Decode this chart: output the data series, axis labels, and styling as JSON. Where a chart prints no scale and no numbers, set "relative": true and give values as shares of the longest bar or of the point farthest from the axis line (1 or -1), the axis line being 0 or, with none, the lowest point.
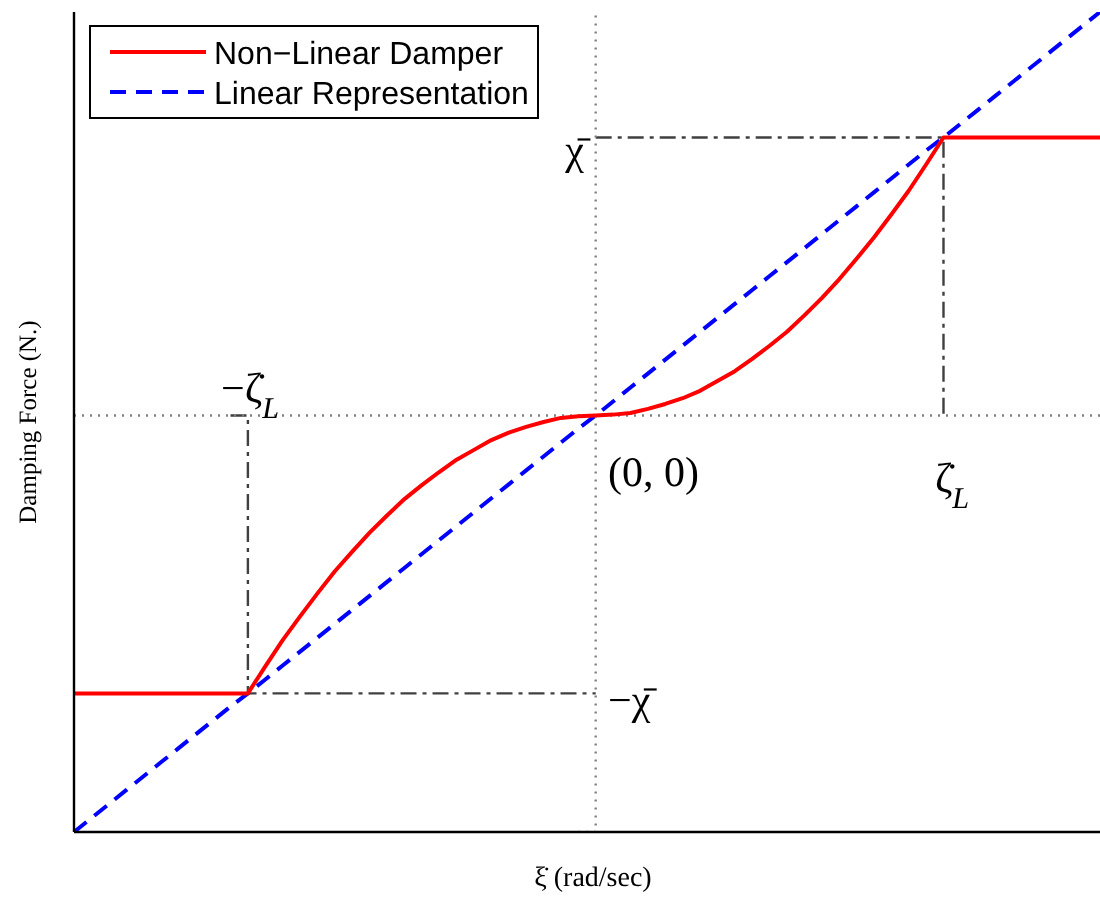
{
  "chart_data": {
    "type": "line",
    "relative": true,
    "xlabel": "ξ̇ (rad/sec)",
    "ylabel": "Damping Force (N.)",
    "categories": [
      null,
      null,
      null,
      null,
      null,
      null,
      null,
      null,
      null,
      null,
      null,
      null,
      null,
      null,
      null,
      null,
      null,
      null,
      null,
      null,
      null,
      null,
      null,
      null,
      null,
      null,
      null,
      null,
      null,
      null,
      null,
      null,
      null,
      null,
      null,
      null,
      null,
      null,
      null,
      null,
      null,
      null,
      null,
      null,
      null,
      null,
      null,
      null,
      null,
      null,
      null,
      null,
      null,
      null,
      null,
      null,
      null,
      null,
      null,
      null
    ],
    "series": [
      {
        "name": "Non−Linear Damper",
        "color": "#ff0000",
        "line_style": "solid",
        "values": [
          0.169,
          0.169,
          0.169,
          0.169,
          0.169,
          0.169,
          0.169,
          0.169,
          0.169,
          0.169,
          0.169,
          0.202,
          0.234,
          0.263,
          0.291,
          0.318,
          0.342,
          0.365,
          0.386,
          0.406,
          0.423,
          0.439,
          0.454,
          0.466,
          0.478,
          0.487,
          0.494,
          0.5,
          0.505,
          0.507,
          0.508,
          0.509,
          0.511,
          0.516,
          0.522,
          0.529,
          0.538,
          0.55,
          0.562,
          0.577,
          0.593,
          0.61,
          0.63,
          0.651,
          0.674,
          0.699,
          0.725,
          0.753,
          0.782,
          0.814,
          0.847,
          0.847,
          0.847,
          0.847,
          0.847,
          0.847,
          0.847,
          0.847,
          0.847,
          0.847
        ]
      },
      {
        "name": "Linear Representation",
        "color": "#0000ff",
        "line_style": "dashed",
        "values": [
          0,
          0.017,
          0.034,
          0.051,
          0.068,
          0.085,
          0.102,
          0.119,
          0.136,
          0.153,
          0.169,
          0.186,
          0.203,
          0.22,
          0.237,
          0.254,
          0.271,
          0.288,
          0.305,
          0.322,
          0.339,
          0.356,
          0.373,
          0.39,
          0.407,
          0.424,
          0.441,
          0.458,
          0.475,
          0.492,
          0.508,
          0.525,
          0.542,
          0.559,
          0.576,
          0.593,
          0.61,
          0.627,
          0.644,
          0.661,
          0.678,
          0.695,
          0.712,
          0.729,
          0.746,
          0.763,
          0.78,
          0.797,
          0.814,
          0.831,
          0.847,
          0.864,
          0.881,
          0.898,
          0.915,
          0.932,
          0.949,
          0.966,
          0.983,
          1
        ]
      },
      {
        "type": "line",
        "color": "#808080",
        "line_style": "dotted",
        "values": [
          0.508,
          0.508,
          0.508,
          0.508,
          0.508,
          0.508,
          0.508,
          0.508,
          0.508,
          0.508,
          0.508,
          0.508,
          0.508,
          0.508,
          0.508,
          0.508,
          0.508,
          0.508,
          0.508,
          0.508,
          0.508,
          0.508,
          0.508,
          0.508,
          0.508,
          0.508,
          0.508,
          0.508,
          0.508,
          0.508,
          0.508,
          0.508,
          0.508,
          0.508,
          0.508,
          0.508,
          0.508,
          0.508,
          0.508,
          0.508,
          0.508,
          0.508,
          0.508,
          0.508,
          0.508,
          0.508,
          0.508,
          0.508,
          0.508,
          0.508,
          0.508,
          0.508,
          0.508,
          0.508,
          0.508,
          0.508,
          0.508,
          0.508,
          0.508,
          0.508
        ]
      },
      {
        "type": "step",
        "color": "#808080",
        "line_style": "dotted",
        "values": [
          null,
          null,
          null,
          null,
          null,
          null,
          null,
          null,
          null,
          null,
          null,
          null,
          null,
          null,
          null,
          null,
          null,
          null,
          null,
          null,
          null,
          null,
          null,
          null,
          null,
          null,
          null,
          null,
          null,
          0,
          1,
          null,
          null,
          null,
          null,
          null,
          null,
          null,
          null,
          null,
          null,
          null,
          null,
          null,
          null,
          null,
          null,
          null,
          null,
          null,
          null,
          null,
          null,
          null,
          null,
          null,
          null,
          null,
          null,
          null
        ]
      },
      {
        "type": "step",
        "color": "#404040",
        "line_style": "dashdot",
        "values": [
          null,
          null,
          null,
          null,
          null,
          null,
          null,
          null,
          null,
          0.508,
          0.169,
          0.169,
          0.169,
          0.169,
          0.169,
          0.169,
          0.169,
          0.169,
          0.169,
          0.169,
          0.169,
          0.169,
          0.169,
          0.169,
          0.169,
          0.169,
          0.169,
          0.169,
          0.169,
          0.169,
          0.169,
          null,
          null,
          null,
          null,
          null,
          null,
          null,
          null,
          null,
          null,
          null,
          null,
          null,
          null,
          null,
          null,
          null,
          null,
          null,
          null,
          null,
          null,
          null,
          null,
          null,
          null,
          null,
          null,
          null
        ]
      },
      {
        "type": "step",
        "color": "#404040",
        "line_style": "dashdot",
        "values": [
          null,
          null,
          null,
          null,
          null,
          null,
          null,
          null,
          null,
          null,
          null,
          null,
          null,
          null,
          null,
          null,
          null,
          null,
          null,
          null,
          null,
          null,
          null,
          null,
          null,
          null,
          null,
          null,
          null,
          null,
          0.847,
          0.847,
          0.847,
          0.847,
          0.847,
          0.847,
          0.847,
          0.847,
          0.847,
          0.847,
          0.847,
          0.847,
          0.847,
          0.847,
          0.847,
          0.847,
          0.847,
          0.847,
          0.847,
          0.847,
          0.508,
          null,
          null,
          null,
          null,
          null,
          null,
          null,
          null,
          null
        ]
      }
    ],
    "annotations": [
      "−ζ̇$_{L}$",
      "ζ̇$_{L}$",
      "χ̄",
      "−χ̄",
      "(0, 0)"
    ],
    "legend": "top left",
    "marker": "none"
  }
}
